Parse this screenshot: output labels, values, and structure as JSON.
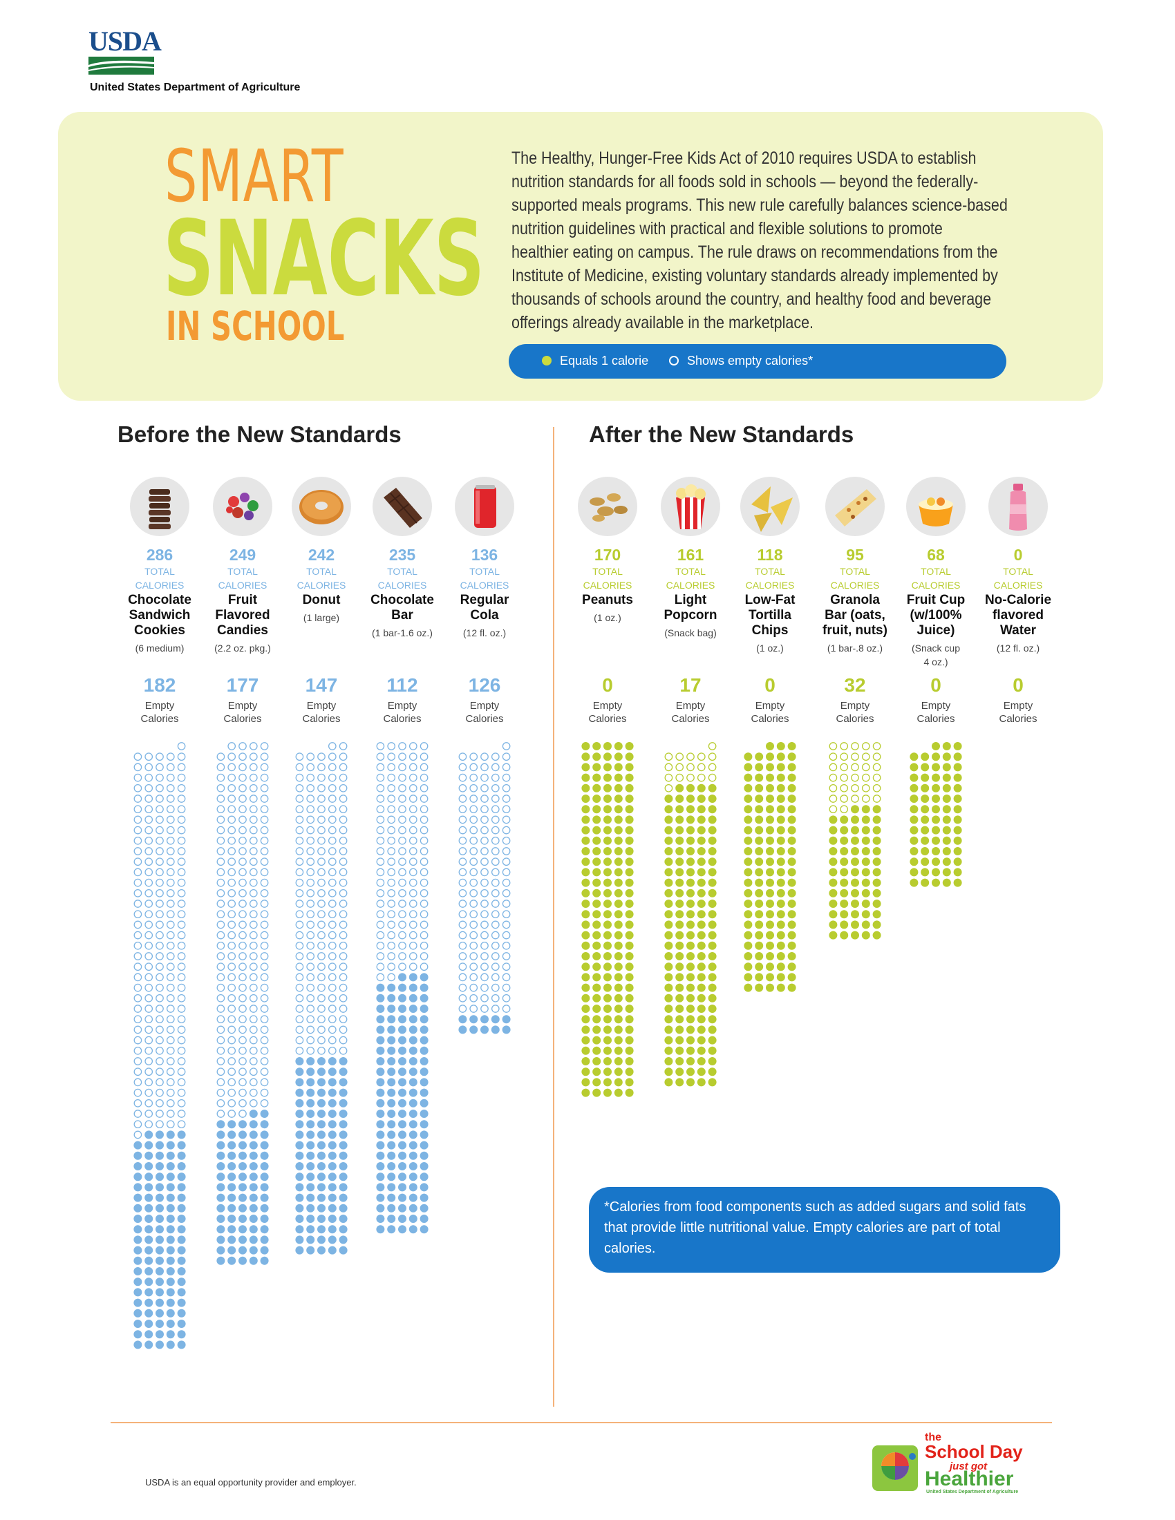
{
  "header": {
    "logo": "USDA",
    "agency": "United States Department of Agriculture"
  },
  "hero": {
    "title_line1": "SMART",
    "title_line2": "SNACKS",
    "title_line3": "IN SCHOOL",
    "intro_lines": [
      "The Healthy, Hunger-Free Kids Act of 2010 requires USDA to establish",
      "nutrition standards for all foods sold in schools — beyond the federally-",
      "supported meals programs. This new rule carefully balances science-based",
      "nutrition guidelines with practical and flexible solutions to promote",
      "healthier eating on campus. The rule draws on recommendations from the",
      "Institute of Medicine, existing voluntary standards already implemented by",
      "thousands of schools around the country, and healthy food and beverage",
      "offerings already available in the marketplace."
    ],
    "legend_filled": "Equals 1 calorie",
    "legend_empty": "Shows empty calories*"
  },
  "sections": {
    "before": "Before the New Standards",
    "after": "After the New Standards"
  },
  "labels": {
    "total": "TOTAL",
    "calories": "CALORIES",
    "empty": "Empty",
    "empty2": "Calories"
  },
  "colors": {
    "before": "#7db4e3",
    "after": "#b8cc2f",
    "accent": "#1876c9",
    "orange": "#f39a33"
  },
  "chart_data": {
    "type": "pictograph",
    "unit": "Equals 1 calorie",
    "groups": [
      {
        "name": "Before the New Standards",
        "items": [
          {
            "icon": "cookies-icon",
            "total_calories": 286,
            "empty_calories": 182,
            "name": [
              "Chocolate",
              "Sandwich",
              "Cookies"
            ],
            "serving": [
              "(6 medium)"
            ]
          },
          {
            "icon": "candies-icon",
            "total_calories": 249,
            "empty_calories": 177,
            "name": [
              "Fruit",
              "Flavored",
              "Candies"
            ],
            "serving": [
              "(2.2 oz. pkg.)"
            ]
          },
          {
            "icon": "donut-icon",
            "total_calories": 242,
            "empty_calories": 147,
            "name": [
              "Donut"
            ],
            "serving": [
              "(1 large)"
            ]
          },
          {
            "icon": "chocolate-bar-icon",
            "total_calories": 235,
            "empty_calories": 112,
            "name": [
              "Chocolate",
              "Bar"
            ],
            "serving": [
              "(1 bar-1.6 oz.)"
            ]
          },
          {
            "icon": "cola-can-icon",
            "total_calories": 136,
            "empty_calories": 126,
            "name": [
              "Regular",
              "Cola"
            ],
            "serving": [
              "(12 fl. oz.)"
            ]
          }
        ]
      },
      {
        "name": "After the New Standards",
        "items": [
          {
            "icon": "peanuts-icon",
            "total_calories": 170,
            "empty_calories": 0,
            "name": [
              "Peanuts"
            ],
            "serving": [
              "(1 oz.)"
            ]
          },
          {
            "icon": "popcorn-icon",
            "total_calories": 161,
            "empty_calories": 17,
            "name": [
              "Light",
              "Popcorn"
            ],
            "serving": [
              "(Snack bag)"
            ]
          },
          {
            "icon": "tortilla-chips-icon",
            "total_calories": 118,
            "empty_calories": 0,
            "name": [
              "Low-Fat",
              "Tortilla",
              "Chips"
            ],
            "serving": [
              "(1 oz.)"
            ]
          },
          {
            "icon": "granola-bar-icon",
            "total_calories": 95,
            "empty_calories": 32,
            "name": [
              "Granola",
              "Bar (oats,",
              "fruit, nuts)"
            ],
            "serving": [
              "(1 bar-.8 oz.)"
            ]
          },
          {
            "icon": "fruit-cup-icon",
            "total_calories": 68,
            "empty_calories": 0,
            "name": [
              "Fruit Cup",
              "(w/100%",
              "Juice)"
            ],
            "serving": [
              "(Snack cup",
              "4 oz.)"
            ]
          },
          {
            "icon": "water-bottle-icon",
            "total_calories": 0,
            "empty_calories": 0,
            "name": [
              "No-Calorie",
              "flavored",
              "Water"
            ],
            "serving": [
              "(12 fl. oz.)"
            ]
          }
        ]
      }
    ]
  },
  "note": "*Calories from food components such as added sugars and solid fats that provide little nutritional value. Empty calories are part of total calories.",
  "footer": "USDA is an equal opportunity provider and employer.",
  "badge": {
    "line1": "the",
    "line2": "School Day",
    "line3": "just got",
    "line4": "Healthier",
    "line5": "United States Department of Agriculture"
  }
}
